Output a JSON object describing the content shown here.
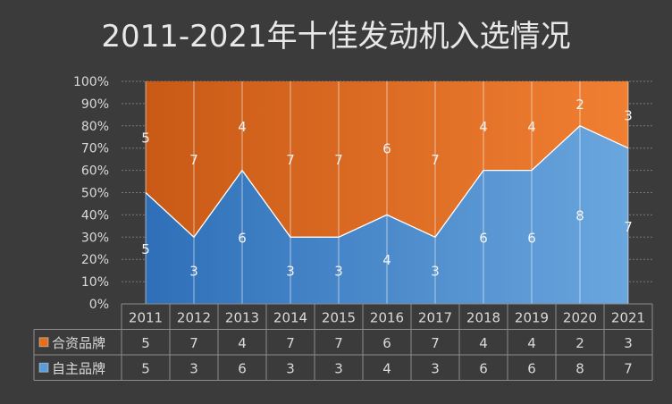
{
  "chart_data": {
    "type": "area",
    "stacked": "percent",
    "title": "2011-2021年十佳发动机入选情况",
    "categories": [
      "2011",
      "2012",
      "2013",
      "2014",
      "2015",
      "2016",
      "2017",
      "2018",
      "2019",
      "2020",
      "2021"
    ],
    "y_ticks": [
      "0%",
      "10%",
      "20%",
      "30%",
      "40%",
      "50%",
      "60%",
      "70%",
      "80%",
      "90%",
      "100%"
    ],
    "ylim": [
      0,
      100
    ],
    "grid": true,
    "legend": "data-table-left",
    "series": [
      {
        "name": "自主品牌",
        "color": "#5a9bd8",
        "values": [
          5,
          3,
          6,
          3,
          3,
          4,
          3,
          6,
          6,
          8,
          7
        ]
      },
      {
        "name": "合资品牌",
        "color": "#e07020",
        "values": [
          5,
          7,
          4,
          7,
          7,
          6,
          7,
          4,
          4,
          2,
          3
        ]
      }
    ]
  },
  "colors": {
    "background": "#3b3b3b",
    "text": "#d9d9d9",
    "title": "#e8e8e8",
    "table_line": "#8c8c8c",
    "area_line": "#ffffff"
  }
}
